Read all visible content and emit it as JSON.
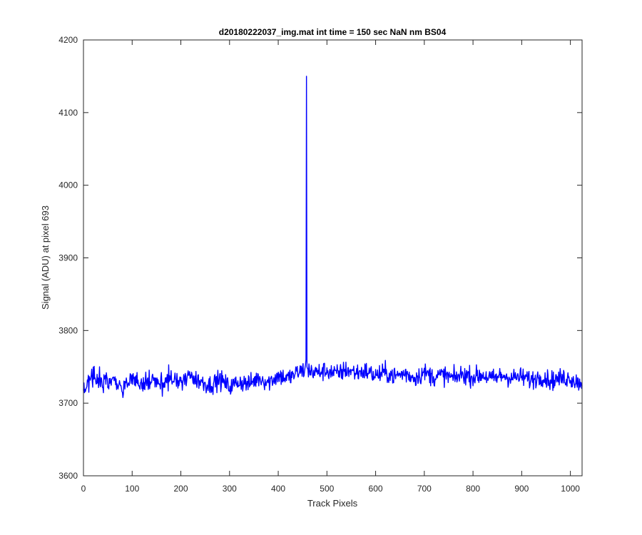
{
  "chart_data": {
    "type": "line",
    "title": "d20180222037_img.mat int time = 150 sec  NaN nm BS04",
    "xlabel": "Track Pixels",
    "ylabel": "Signal (ADU) at pixel 693",
    "xlim": [
      0,
      1024
    ],
    "ylim": [
      3600,
      4200
    ],
    "xticks": [
      0,
      100,
      200,
      300,
      400,
      500,
      600,
      700,
      800,
      900,
      1000
    ],
    "yticks": [
      3600,
      3700,
      3800,
      3900,
      4000,
      4100,
      4200
    ],
    "grid": false,
    "legend": "none",
    "line_color": "#0000ff",
    "series": [
      {
        "x": [
          0,
          20,
          40,
          60,
          80,
          100,
          120,
          140,
          160,
          180,
          200,
          220,
          240,
          260,
          280,
          300,
          320,
          340,
          360,
          380,
          400,
          420,
          440,
          455,
          457,
          458,
          459,
          460,
          462,
          480,
          500,
          520,
          540,
          560,
          580,
          600,
          620,
          640,
          660,
          680,
          700,
          720,
          740,
          760,
          780,
          800,
          820,
          840,
          860,
          880,
          900,
          920,
          940,
          960,
          980,
          1000,
          1010,
          1024
        ],
        "y": [
          3720,
          3740,
          3727,
          3735,
          3722,
          3733,
          3726,
          3731,
          3724,
          3736,
          3728,
          3738,
          3730,
          3725,
          3733,
          3722,
          3730,
          3726,
          3735,
          3729,
          3738,
          3734,
          3742,
          3746,
          3760,
          4150,
          3750,
          3748,
          3745,
          3742,
          3745,
          3740,
          3746,
          3742,
          3744,
          3738,
          3742,
          3737,
          3741,
          3735,
          3742,
          3736,
          3739,
          3734,
          3740,
          3736,
          3739,
          3733,
          3738,
          3735,
          3736,
          3732,
          3737,
          3731,
          3734,
          3735,
          3730,
          3728
        ]
      }
    ]
  }
}
